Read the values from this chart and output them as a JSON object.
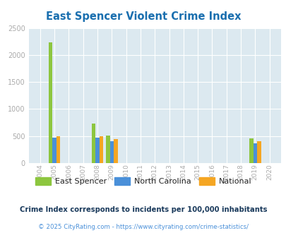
{
  "title": "East Spencer Violent Crime Index",
  "title_color": "#1a6faf",
  "years": [
    2004,
    2005,
    2006,
    2007,
    2008,
    2009,
    2010,
    2011,
    2012,
    2013,
    2014,
    2015,
    2016,
    2017,
    2018,
    2019,
    2020
  ],
  "east_spencer": [
    0,
    2230,
    0,
    0,
    730,
    505,
    0,
    0,
    0,
    0,
    0,
    0,
    0,
    0,
    0,
    460,
    0
  ],
  "north_carolina": [
    0,
    475,
    0,
    0,
    475,
    405,
    0,
    0,
    0,
    0,
    0,
    0,
    0,
    0,
    0,
    370,
    0
  ],
  "national": [
    0,
    490,
    0,
    0,
    490,
    445,
    0,
    0,
    0,
    0,
    0,
    0,
    0,
    0,
    0,
    400,
    0
  ],
  "color_east_spencer": "#8dc63f",
  "color_north_carolina": "#4a90d9",
  "color_national": "#f5a623",
  "ylim": [
    0,
    2500
  ],
  "yticks": [
    0,
    500,
    1000,
    1500,
    2000,
    2500
  ],
  "plot_bg": "#dce9f0",
  "legend_labels": [
    "East Spencer",
    "North Carolina",
    "National"
  ],
  "note_text": "Crime Index corresponds to incidents per 100,000 inhabitants",
  "copyright_text": "© 2025 CityRating.com - https://www.cityrating.com/crime-statistics/",
  "note_color": "#1a3a5c",
  "copyright_color": "#4a90d9",
  "bar_width": 0.27
}
